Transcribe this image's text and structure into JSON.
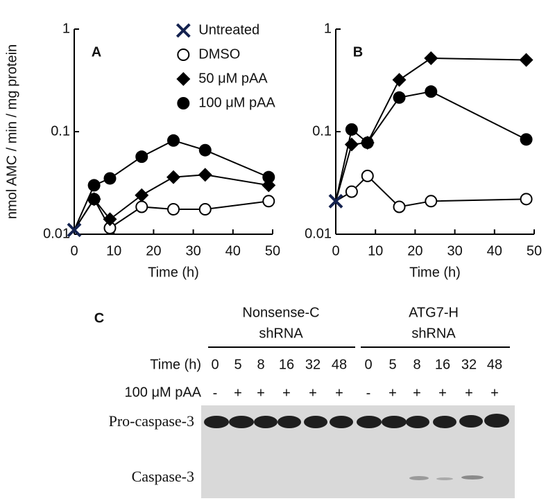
{
  "chart_data": [
    {
      "type": "line",
      "panel": "A",
      "xlabel": "Time (h)",
      "ylabel": "nmol AMC / min / mg protein",
      "xlim": [
        0,
        50
      ],
      "xticks": [
        0,
        10,
        20,
        30,
        40,
        50
      ],
      "ylim": [
        0.01,
        1
      ],
      "yticks": [
        0.01,
        0.1,
        1
      ],
      "log_y": true,
      "legend": "top",
      "series": [
        {
          "name": "Untreated",
          "marker": "x",
          "color": "#14224f",
          "x": [
            0
          ],
          "values": [
            0.011
          ]
        },
        {
          "name": "DMSO",
          "marker": "open-circle",
          "color": "#000000",
          "x": [
            5,
            9,
            17,
            25,
            33,
            49
          ],
          "values": [
            0.022,
            0.0115,
            0.0185,
            0.0175,
            0.0175,
            0.021
          ]
        },
        {
          "name": "50 μM pAA",
          "marker": "diamond",
          "color": "#000000",
          "x": [
            5,
            9,
            17,
            25,
            33,
            49
          ],
          "values": [
            0.022,
            0.014,
            0.024,
            0.036,
            0.038,
            0.03
          ]
        },
        {
          "name": "100 μM pAA",
          "marker": "circle",
          "color": "#000000",
          "x": [
            5,
            9,
            17,
            25,
            33,
            49
          ],
          "values": [
            0.03,
            0.035,
            0.057,
            0.082,
            0.066,
            0.036
          ]
        }
      ]
    },
    {
      "type": "line",
      "panel": "B",
      "xlabel": "Time (h)",
      "xlim": [
        0,
        50
      ],
      "xticks": [
        0,
        10,
        20,
        30,
        40,
        50
      ],
      "ylim": [
        0.01,
        1
      ],
      "yticks": [
        0.01,
        0.1,
        1
      ],
      "log_y": true,
      "series": [
        {
          "marker": "x",
          "color": "#14224f",
          "x": [
            0
          ],
          "values": [
            0.021
          ]
        },
        {
          "marker": "open-circle",
          "color": "#000000",
          "x": [
            4,
            8,
            16,
            24,
            48
          ],
          "values": [
            0.026,
            0.037,
            0.0185,
            0.021,
            0.022
          ]
        },
        {
          "marker": "diamond",
          "color": "#000000",
          "x": [
            4,
            8,
            16,
            24,
            48
          ],
          "values": [
            0.075,
            0.078,
            0.32,
            0.52,
            0.5
          ]
        },
        {
          "marker": "circle",
          "color": "#000000",
          "x": [
            4,
            8,
            16,
            24,
            48
          ],
          "values": [
            0.105,
            0.078,
            0.215,
            0.246,
            0.084
          ]
        }
      ]
    }
  ],
  "blot": {
    "panel": "C",
    "time_label": "Time (h)",
    "treatment_label": "100 μM pAA",
    "groups": [
      {
        "name_lines": [
          "Nonsense-C",
          "shRNA"
        ],
        "times": [
          0,
          5,
          8,
          16,
          32,
          48
        ],
        "treatment": [
          "-",
          "+",
          "+",
          "+",
          "+",
          "+"
        ]
      },
      {
        "name_lines": [
          "ATG7-H",
          "shRNA"
        ],
        "times": [
          0,
          5,
          8,
          16,
          32,
          48
        ],
        "treatment": [
          "-",
          "+",
          "+",
          "+",
          "+",
          "+"
        ]
      }
    ],
    "bands": [
      "Pro-caspase-3",
      "Caspase-3"
    ]
  }
}
